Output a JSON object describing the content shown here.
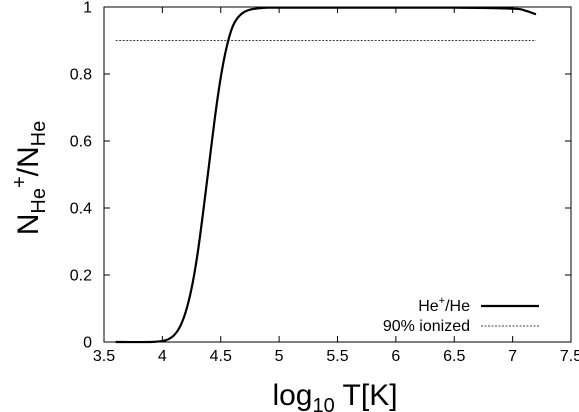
{
  "chart_data": {
    "type": "line",
    "title": "",
    "xlabel": {
      "base": "log",
      "sub": "10",
      "tail": " T[K]"
    },
    "ylabel": {
      "n1": "N",
      "sub1": "He",
      "sup1": "+",
      "slash": "/N",
      "sub2": "He"
    },
    "xlim": [
      3.5,
      7.5
    ],
    "ylim": [
      0,
      1
    ],
    "xticks": [
      "3.5",
      "4",
      "4.5",
      "5",
      "5.5",
      "6",
      "6.5",
      "7",
      "7.5"
    ],
    "yticks": [
      "0",
      "0.2",
      "0.4",
      "0.6",
      "0.8",
      "1"
    ],
    "grid": false,
    "legend_position": "bottom-right",
    "series": [
      {
        "legend_label": {
          "main": "He",
          "sup": "+",
          "tail": "/He"
        },
        "style": "solid",
        "color": "#000000",
        "x": [
          3.6,
          3.9,
          4.0,
          4.05,
          4.1,
          4.15,
          4.2,
          4.25,
          4.3,
          4.35,
          4.4,
          4.45,
          4.5,
          4.55,
          4.6,
          4.65,
          4.7,
          4.75,
          4.8,
          4.85,
          4.9,
          5.0,
          5.5,
          6.0,
          6.5,
          7.0,
          7.1,
          7.2
        ],
        "y": [
          0.0,
          0.0,
          0.003,
          0.008,
          0.02,
          0.045,
          0.09,
          0.16,
          0.26,
          0.39,
          0.53,
          0.67,
          0.79,
          0.88,
          0.94,
          0.97,
          0.985,
          0.992,
          0.995,
          0.997,
          0.998,
          0.998,
          0.998,
          0.998,
          0.998,
          0.995,
          0.99,
          0.978
        ]
      },
      {
        "legend_label": {
          "main": "90% ionized",
          "sup": "",
          "tail": ""
        },
        "style": "dashed",
        "color": "#000000",
        "x": [
          3.6,
          7.2
        ],
        "y": [
          0.9,
          0.9
        ]
      }
    ]
  }
}
